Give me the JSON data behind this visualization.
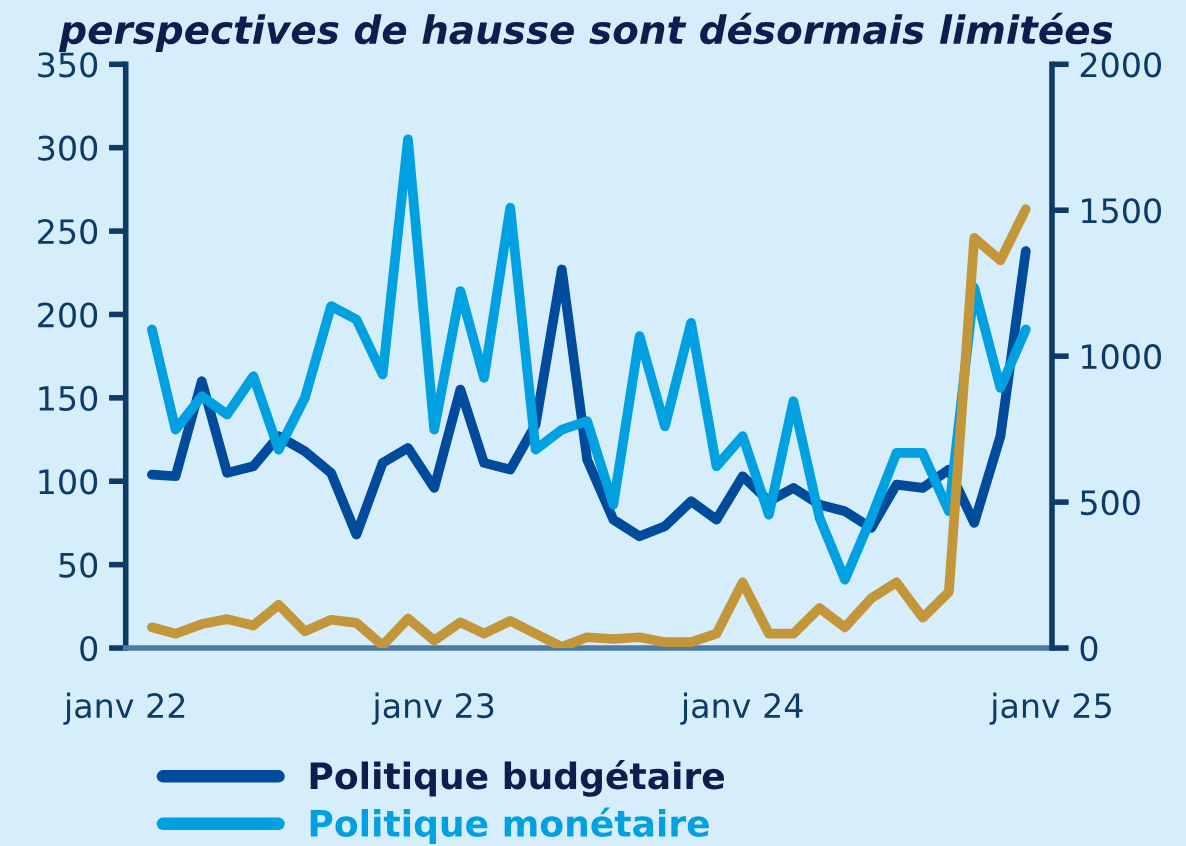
{
  "chart_data": {
    "type": "line",
    "title": "perspectives de hausse sont désormais limitées",
    "x": [
      "2022-02",
      "2022-03",
      "2022-04",
      "2022-05",
      "2022-06",
      "2022-07",
      "2022-08",
      "2022-09",
      "2022-10",
      "2022-11",
      "2022-12",
      "2023-01",
      "2023-02",
      "2023-03",
      "2023-04",
      "2023-05",
      "2023-06",
      "2023-07",
      "2023-08",
      "2023-09",
      "2023-10",
      "2023-11",
      "2023-12",
      "2024-01",
      "2024-02",
      "2024-03",
      "2024-04",
      "2024-05",
      "2024-06",
      "2024-07",
      "2024-08",
      "2024-09",
      "2024-10",
      "2024-11",
      "2024-12"
    ],
    "series": [
      {
        "name": "Politique budgétaire",
        "color": "#004b9b",
        "values": [
          104,
          103,
          160,
          105,
          109,
          127,
          118,
          105,
          68,
          111,
          120,
          96,
          155,
          111,
          107,
          134,
          227,
          113,
          77,
          67,
          73,
          88,
          77,
          103,
          88,
          96,
          86,
          82,
          72,
          98,
          96,
          107,
          75,
          127,
          238
        ]
      },
      {
        "name": "Politique monétaire",
        "color": "#00a0e1",
        "values": [
          191,
          131,
          151,
          140,
          163,
          119,
          150,
          205,
          197,
          164,
          305,
          131,
          214,
          162,
          264,
          119,
          131,
          136,
          86,
          187,
          133,
          195,
          109,
          127,
          80,
          148,
          78,
          41,
          78,
          117,
          117,
          82,
          216,
          156,
          191
        ]
      },
      {
        "color": "#c4963a",
        "axis": "y2",
        "values": [
          71,
          49,
          82,
          99,
          77,
          148,
          57,
          97,
          86,
          9,
          101,
          26,
          88,
          49,
          93,
          49,
          4,
          37,
          31,
          37,
          20,
          20,
          49,
          225,
          49,
          49,
          137,
          71,
          170,
          225,
          104,
          192,
          1405,
          1328,
          1504
        ]
      }
    ],
    "xlim": [
      "2022-01",
      "2025-01"
    ],
    "xticks": [
      {
        "value": "2022-01",
        "label": "janv 22"
      },
      {
        "value": "2023-01",
        "label": "janv 23"
      },
      {
        "value": "2024-01",
        "label": "janv 24"
      },
      {
        "value": "2025-01",
        "label": "janv 25"
      }
    ],
    "ylim": [
      0,
      350
    ],
    "yticks": [
      0,
      50,
      100,
      150,
      200,
      250,
      300,
      350
    ],
    "y2lim": [
      0,
      2000
    ],
    "y2ticks": [
      0,
      500,
      1000,
      1500,
      2000
    ],
    "grid": false,
    "legend": "bottom",
    "line_style": "solid",
    "marker": "none"
  }
}
